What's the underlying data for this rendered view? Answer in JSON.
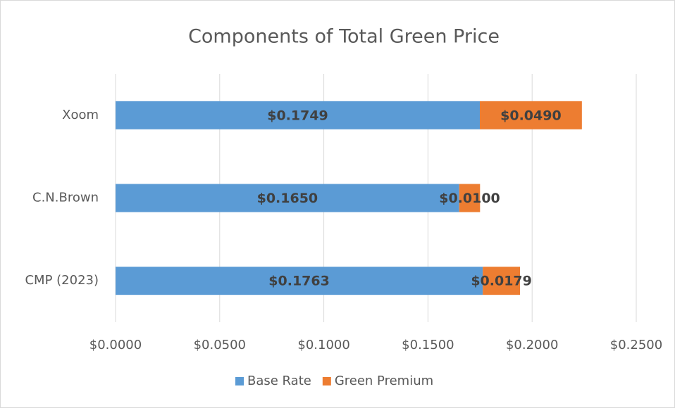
{
  "chart_data": {
    "type": "stacked-bar-horizontal",
    "title": "Components of Total Green Price",
    "categories": [
      "Xoom",
      "C.N.Brown",
      "CMP (2023)"
    ],
    "series": [
      {
        "name": "Base Rate",
        "color": "#5b9bd5",
        "values": [
          0.1749,
          0.165,
          0.1763
        ],
        "value_labels": [
          "$0.1749",
          "$0.1650",
          "$0.1763"
        ]
      },
      {
        "name": "Green Premium",
        "color": "#ed7d31",
        "values": [
          0.049,
          0.01,
          0.0179
        ],
        "value_labels": [
          "$0.0490",
          "$0.0100",
          "$0.0179"
        ]
      }
    ],
    "xlim": [
      0,
      0.25
    ],
    "xticks": [
      {
        "value": 0,
        "label": "$0.0000"
      },
      {
        "value": 0.05,
        "label": "$0.0500"
      },
      {
        "value": 0.1,
        "label": "$0.1000"
      },
      {
        "value": 0.15,
        "label": "$0.1500"
      },
      {
        "value": 0.2,
        "label": "$0.2000"
      },
      {
        "value": 0.25,
        "label": "$0.2500"
      }
    ],
    "grid": true,
    "legend": "bottom"
  }
}
